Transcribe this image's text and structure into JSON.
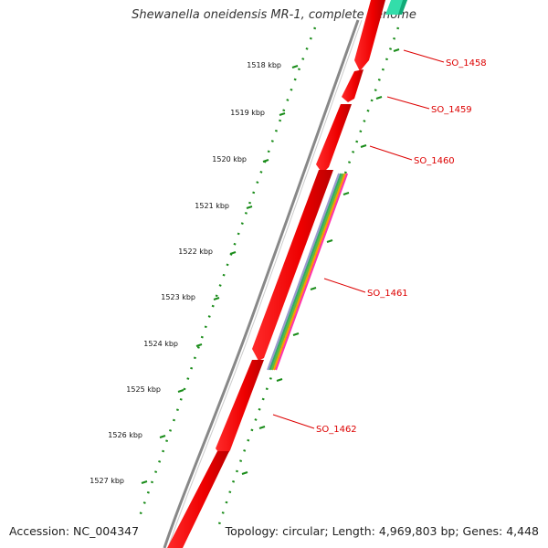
{
  "title": "Shewanella oneidensis MR-1, complete genome",
  "footer": {
    "accession": "Accession: NC_004347",
    "summary": "Topology: circular; Length: 4,969,803 bp; Genes: 4,448"
  },
  "colors": {
    "backbone": "#888888",
    "gene_forward": "#ff0000",
    "gene_forward_dark": "#cc0000",
    "tick": "#1a8c1a",
    "label": "#dd0000",
    "top_feature": "#33ddaa"
  },
  "kbp_ticks": [
    {
      "label": "1518 kbp"
    },
    {
      "label": "1519 kbp"
    },
    {
      "label": "1520 kbp"
    },
    {
      "label": "1521 kbp"
    },
    {
      "label": "1522 kbp"
    },
    {
      "label": "1523 kbp"
    },
    {
      "label": "1524 kbp"
    },
    {
      "label": "1525 kbp"
    },
    {
      "label": "1526 kbp"
    },
    {
      "label": "1527 kbp"
    }
  ],
  "gene_labels": [
    {
      "label": "SO_1458"
    },
    {
      "label": "SO_1459"
    },
    {
      "label": "SO_1460"
    },
    {
      "label": "SO_1461"
    },
    {
      "label": "SO_1462"
    }
  ],
  "stripe_colors": [
    "#ff33aa",
    "#ff9900",
    "#66bb33",
    "#33aa66",
    "#9999cc"
  ]
}
